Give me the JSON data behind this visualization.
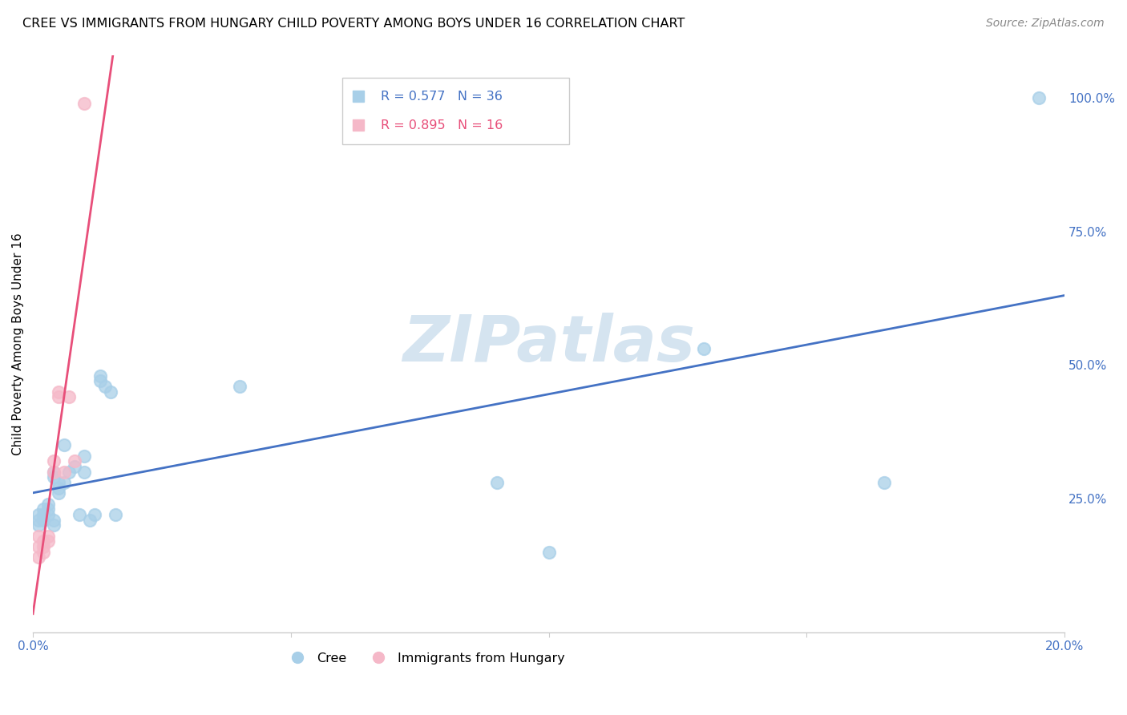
{
  "title": "CREE VS IMMIGRANTS FROM HUNGARY CHILD POVERTY AMONG BOYS UNDER 16 CORRELATION CHART",
  "source": "Source: ZipAtlas.com",
  "ylabel": "Child Poverty Among Boys Under 16",
  "xlim": [
    0.0,
    0.2
  ],
  "ylim": [
    0.0,
    1.08
  ],
  "cree_color": "#a8cfe8",
  "hungary_color": "#f5b8c8",
  "cree_line_color": "#4472c4",
  "hungary_line_color": "#e84f7a",
  "watermark": "ZIPatlas",
  "watermark_color": "#d5e4f0",
  "cree_x": [
    0.001,
    0.001,
    0.001,
    0.002,
    0.002,
    0.002,
    0.003,
    0.003,
    0.003,
    0.004,
    0.004,
    0.004,
    0.004,
    0.005,
    0.005,
    0.005,
    0.006,
    0.006,
    0.007,
    0.008,
    0.009,
    0.01,
    0.01,
    0.011,
    0.012,
    0.013,
    0.013,
    0.014,
    0.015,
    0.016,
    0.04,
    0.09,
    0.1,
    0.13,
    0.165,
    0.195
  ],
  "cree_y": [
    0.22,
    0.21,
    0.2,
    0.23,
    0.22,
    0.21,
    0.22,
    0.24,
    0.23,
    0.3,
    0.29,
    0.21,
    0.2,
    0.28,
    0.27,
    0.26,
    0.35,
    0.28,
    0.3,
    0.31,
    0.22,
    0.3,
    0.33,
    0.21,
    0.22,
    0.47,
    0.48,
    0.46,
    0.45,
    0.22,
    0.46,
    0.28,
    0.15,
    0.53,
    0.28,
    1.0
  ],
  "hungary_x": [
    0.001,
    0.001,
    0.001,
    0.002,
    0.002,
    0.002,
    0.003,
    0.003,
    0.004,
    0.004,
    0.005,
    0.005,
    0.006,
    0.007,
    0.008,
    0.01
  ],
  "hungary_y": [
    0.18,
    0.16,
    0.14,
    0.16,
    0.15,
    0.17,
    0.17,
    0.18,
    0.3,
    0.32,
    0.44,
    0.45,
    0.3,
    0.44,
    0.32,
    0.99
  ],
  "cree_R": 0.577,
  "cree_N": 36,
  "hungary_R": 0.895,
  "hungary_N": 16,
  "background_color": "#ffffff",
  "grid_color": "#e0e0e0"
}
